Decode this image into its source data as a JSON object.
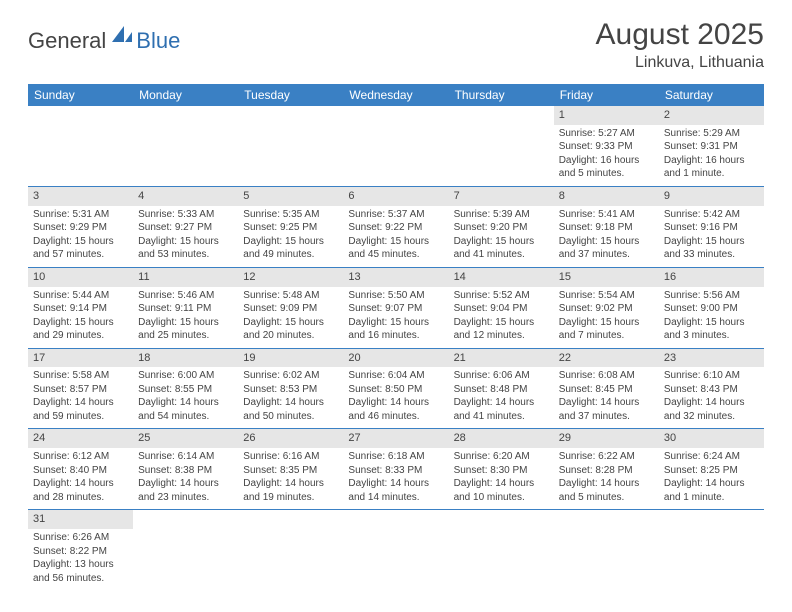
{
  "logo": {
    "general": "General",
    "blue": "Blue"
  },
  "title": "August 2025",
  "subtitle": "Linkuva, Lithuania",
  "day_headers": [
    "Sunday",
    "Monday",
    "Tuesday",
    "Wednesday",
    "Thursday",
    "Friday",
    "Saturday"
  ],
  "colors": {
    "header_bg": "#3a80c4",
    "header_text": "#ffffff",
    "daynum_bg": "#e6e6e6",
    "row_border": "#3a80c4",
    "logo_blue": "#2f6fb0",
    "text": "#444444",
    "bg": "#ffffff"
  },
  "typography": {
    "title_fontsize": 30,
    "subtitle_fontsize": 16,
    "header_fontsize": 12,
    "body_fontsize": 10
  },
  "weeks": [
    [
      null,
      null,
      null,
      null,
      null,
      {
        "n": "1",
        "sr": "Sunrise: 5:27 AM",
        "ss": "Sunset: 9:33 PM",
        "d1": "Daylight: 16 hours",
        "d2": "and 5 minutes."
      },
      {
        "n": "2",
        "sr": "Sunrise: 5:29 AM",
        "ss": "Sunset: 9:31 PM",
        "d1": "Daylight: 16 hours",
        "d2": "and 1 minute."
      }
    ],
    [
      {
        "n": "3",
        "sr": "Sunrise: 5:31 AM",
        "ss": "Sunset: 9:29 PM",
        "d1": "Daylight: 15 hours",
        "d2": "and 57 minutes."
      },
      {
        "n": "4",
        "sr": "Sunrise: 5:33 AM",
        "ss": "Sunset: 9:27 PM",
        "d1": "Daylight: 15 hours",
        "d2": "and 53 minutes."
      },
      {
        "n": "5",
        "sr": "Sunrise: 5:35 AM",
        "ss": "Sunset: 9:25 PM",
        "d1": "Daylight: 15 hours",
        "d2": "and 49 minutes."
      },
      {
        "n": "6",
        "sr": "Sunrise: 5:37 AM",
        "ss": "Sunset: 9:22 PM",
        "d1": "Daylight: 15 hours",
        "d2": "and 45 minutes."
      },
      {
        "n": "7",
        "sr": "Sunrise: 5:39 AM",
        "ss": "Sunset: 9:20 PM",
        "d1": "Daylight: 15 hours",
        "d2": "and 41 minutes."
      },
      {
        "n": "8",
        "sr": "Sunrise: 5:41 AM",
        "ss": "Sunset: 9:18 PM",
        "d1": "Daylight: 15 hours",
        "d2": "and 37 minutes."
      },
      {
        "n": "9",
        "sr": "Sunrise: 5:42 AM",
        "ss": "Sunset: 9:16 PM",
        "d1": "Daylight: 15 hours",
        "d2": "and 33 minutes."
      }
    ],
    [
      {
        "n": "10",
        "sr": "Sunrise: 5:44 AM",
        "ss": "Sunset: 9:14 PM",
        "d1": "Daylight: 15 hours",
        "d2": "and 29 minutes."
      },
      {
        "n": "11",
        "sr": "Sunrise: 5:46 AM",
        "ss": "Sunset: 9:11 PM",
        "d1": "Daylight: 15 hours",
        "d2": "and 25 minutes."
      },
      {
        "n": "12",
        "sr": "Sunrise: 5:48 AM",
        "ss": "Sunset: 9:09 PM",
        "d1": "Daylight: 15 hours",
        "d2": "and 20 minutes."
      },
      {
        "n": "13",
        "sr": "Sunrise: 5:50 AM",
        "ss": "Sunset: 9:07 PM",
        "d1": "Daylight: 15 hours",
        "d2": "and 16 minutes."
      },
      {
        "n": "14",
        "sr": "Sunrise: 5:52 AM",
        "ss": "Sunset: 9:04 PM",
        "d1": "Daylight: 15 hours",
        "d2": "and 12 minutes."
      },
      {
        "n": "15",
        "sr": "Sunrise: 5:54 AM",
        "ss": "Sunset: 9:02 PM",
        "d1": "Daylight: 15 hours",
        "d2": "and 7 minutes."
      },
      {
        "n": "16",
        "sr": "Sunrise: 5:56 AM",
        "ss": "Sunset: 9:00 PM",
        "d1": "Daylight: 15 hours",
        "d2": "and 3 minutes."
      }
    ],
    [
      {
        "n": "17",
        "sr": "Sunrise: 5:58 AM",
        "ss": "Sunset: 8:57 PM",
        "d1": "Daylight: 14 hours",
        "d2": "and 59 minutes."
      },
      {
        "n": "18",
        "sr": "Sunrise: 6:00 AM",
        "ss": "Sunset: 8:55 PM",
        "d1": "Daylight: 14 hours",
        "d2": "and 54 minutes."
      },
      {
        "n": "19",
        "sr": "Sunrise: 6:02 AM",
        "ss": "Sunset: 8:53 PM",
        "d1": "Daylight: 14 hours",
        "d2": "and 50 minutes."
      },
      {
        "n": "20",
        "sr": "Sunrise: 6:04 AM",
        "ss": "Sunset: 8:50 PM",
        "d1": "Daylight: 14 hours",
        "d2": "and 46 minutes."
      },
      {
        "n": "21",
        "sr": "Sunrise: 6:06 AM",
        "ss": "Sunset: 8:48 PM",
        "d1": "Daylight: 14 hours",
        "d2": "and 41 minutes."
      },
      {
        "n": "22",
        "sr": "Sunrise: 6:08 AM",
        "ss": "Sunset: 8:45 PM",
        "d1": "Daylight: 14 hours",
        "d2": "and 37 minutes."
      },
      {
        "n": "23",
        "sr": "Sunrise: 6:10 AM",
        "ss": "Sunset: 8:43 PM",
        "d1": "Daylight: 14 hours",
        "d2": "and 32 minutes."
      }
    ],
    [
      {
        "n": "24",
        "sr": "Sunrise: 6:12 AM",
        "ss": "Sunset: 8:40 PM",
        "d1": "Daylight: 14 hours",
        "d2": "and 28 minutes."
      },
      {
        "n": "25",
        "sr": "Sunrise: 6:14 AM",
        "ss": "Sunset: 8:38 PM",
        "d1": "Daylight: 14 hours",
        "d2": "and 23 minutes."
      },
      {
        "n": "26",
        "sr": "Sunrise: 6:16 AM",
        "ss": "Sunset: 8:35 PM",
        "d1": "Daylight: 14 hours",
        "d2": "and 19 minutes."
      },
      {
        "n": "27",
        "sr": "Sunrise: 6:18 AM",
        "ss": "Sunset: 8:33 PM",
        "d1": "Daylight: 14 hours",
        "d2": "and 14 minutes."
      },
      {
        "n": "28",
        "sr": "Sunrise: 6:20 AM",
        "ss": "Sunset: 8:30 PM",
        "d1": "Daylight: 14 hours",
        "d2": "and 10 minutes."
      },
      {
        "n": "29",
        "sr": "Sunrise: 6:22 AM",
        "ss": "Sunset: 8:28 PM",
        "d1": "Daylight: 14 hours",
        "d2": "and 5 minutes."
      },
      {
        "n": "30",
        "sr": "Sunrise: 6:24 AM",
        "ss": "Sunset: 8:25 PM",
        "d1": "Daylight: 14 hours",
        "d2": "and 1 minute."
      }
    ],
    [
      {
        "n": "31",
        "sr": "Sunrise: 6:26 AM",
        "ss": "Sunset: 8:22 PM",
        "d1": "Daylight: 13 hours",
        "d2": "and 56 minutes."
      },
      null,
      null,
      null,
      null,
      null,
      null
    ]
  ]
}
